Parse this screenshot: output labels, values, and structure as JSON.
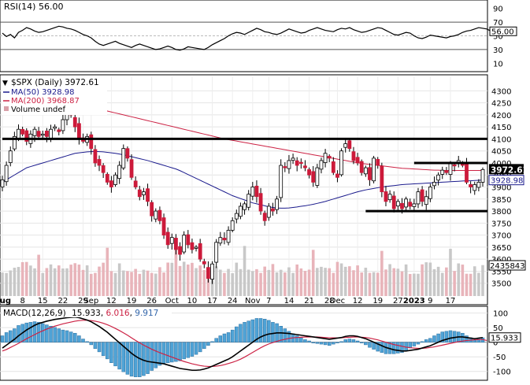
{
  "chart_data": [
    {
      "type": "line",
      "panel": "rsi",
      "legend": "RSI(14) 56.00",
      "ylim": [
        0,
        100
      ],
      "y_ticks": [
        90,
        70,
        50,
        30,
        10
      ],
      "reference_lines": [
        70,
        30
      ],
      "last_value": 56.0,
      "last_label": "56.00",
      "series": [
        {
          "name": "RSI(14)",
          "color": "#000000",
          "values": [
            54,
            49,
            52,
            47,
            55,
            58,
            62,
            60,
            57,
            55,
            56,
            58,
            60,
            62,
            64,
            63,
            61,
            60,
            58,
            55,
            52,
            50,
            47,
            42,
            38,
            36,
            38,
            40,
            42,
            39,
            37,
            35,
            33,
            36,
            38,
            36,
            34,
            32,
            30,
            31,
            33,
            35,
            33,
            30,
            29,
            31,
            34,
            33,
            32,
            31,
            30,
            33,
            37,
            40,
            43,
            46,
            50,
            53,
            55,
            54,
            52,
            55,
            58,
            61,
            59,
            56,
            55,
            53,
            52,
            54,
            57,
            60,
            58,
            56,
            54,
            55,
            58,
            60,
            62,
            60,
            58,
            57,
            56,
            59,
            61,
            60,
            62,
            59,
            57,
            55,
            56,
            58,
            60,
            62,
            61,
            58,
            55,
            52,
            51,
            53,
            55,
            54,
            50,
            47,
            46,
            48,
            51,
            50,
            49,
            48,
            47,
            49,
            50,
            52,
            55,
            57,
            58,
            60,
            62,
            61,
            60,
            57,
            53,
            54,
            56
          ]
        }
      ]
    },
    {
      "type": "candlestick",
      "panel": "price",
      "legend_title": "$SPX (Daily) 3972.61",
      "legend_items": [
        {
          "label": "MA(50) 3928.98",
          "color": "#1a1a8c"
        },
        {
          "label": "MA(200) 3968.87",
          "color": "#cc2244"
        },
        {
          "label": "Volume undef",
          "color": "#d9a0a8"
        }
      ],
      "ylim": [
        3450,
        4360
      ],
      "y_ticks": [
        4300,
        4250,
        4200,
        4150,
        4100,
        4050,
        4000,
        3950,
        3900,
        3850,
        3800,
        3750,
        3700,
        3650,
        3600,
        3550,
        3500
      ],
      "last_price": "3972.61",
      "ma50_label": "3928.98",
      "volume_label": "2435843",
      "x_labels": [
        "Aug",
        "8",
        "15",
        "22",
        "29",
        "Sep",
        "12",
        "19",
        "26",
        "Oct",
        "10",
        "17",
        "24",
        "Nov",
        "7",
        "14",
        "21",
        "28",
        "Dec",
        "12",
        "19",
        "27",
        "2023",
        "9",
        "17"
      ],
      "x_label_index": [
        0,
        5,
        10,
        15,
        20,
        22,
        27,
        32,
        37,
        42,
        47,
        52,
        57,
        62,
        66,
        71,
        76,
        81,
        83,
        88,
        93,
        98,
        102,
        106,
        111
      ],
      "bold_label_index": [
        0,
        22,
        42,
        62,
        83,
        102
      ],
      "horizontal_levels": [
        {
          "value": 4100,
          "from": 0,
          "to": 124
        },
        {
          "value": 4000,
          "from": 102,
          "to": 121
        },
        {
          "value": 3800,
          "from": 90,
          "to": 124
        }
      ],
      "close": [
        3930,
        3990,
        4050,
        4110,
        4140,
        4120,
        4090,
        4120,
        4140,
        4110,
        4120,
        4110,
        4140,
        4150,
        4130,
        4180,
        4210,
        4200,
        4150,
        4100,
        4090,
        4110,
        4060,
        4000,
        3990,
        3960,
        3920,
        3900,
        3950,
        3990,
        4060,
        4020,
        3940,
        3900,
        3860,
        3880,
        3840,
        3780,
        3800,
        3760,
        3700,
        3660,
        3690,
        3640,
        3620,
        3700,
        3660,
        3640,
        3650,
        3600,
        3580,
        3520,
        3580,
        3670,
        3690,
        3680,
        3720,
        3760,
        3790,
        3820,
        3830,
        3870,
        3900,
        3860,
        3800,
        3760,
        3820,
        3800,
        3850,
        3990,
        3980,
        4010,
        4020,
        3990,
        4000,
        3980,
        3950,
        3920,
        3980,
        4010,
        4040,
        4020,
        3960,
        3940,
        4050,
        4080,
        4060,
        4010,
        4000,
        3960,
        3980,
        3930,
        4020,
        3990,
        3880,
        3840,
        3870,
        3810,
        3840,
        3810,
        3850,
        3820,
        3830,
        3880,
        3840,
        3860,
        3900,
        3920,
        3950,
        3970,
        3960,
        4000,
        3990,
        4010,
        3990,
        3920,
        3900,
        3910,
        3920,
        3972.61
      ],
      "ma50": [
        3920,
        3930,
        3940,
        3950,
        3960,
        3970,
        3980,
        3985,
        3990,
        3995,
        4000,
        4005,
        4010,
        4015,
        4020,
        4025,
        4030,
        4035,
        4040,
        4042,
        4044,
        4046,
        4047,
        4048,
        4047,
        4046,
        4044,
        4042,
        4040,
        4037,
        4034,
        4030,
        4026,
        4022,
        4018,
        4014,
        4010,
        4005,
        4000,
        3995,
        3990,
        3985,
        3980,
        3975,
        3968,
        3960,
        3952,
        3944,
        3936,
        3928,
        3920,
        3912,
        3904,
        3896,
        3888,
        3880,
        3872,
        3864,
        3858,
        3852,
        3846,
        3840,
        3834,
        3830,
        3826,
        3822,
        3818,
        3815,
        3813,
        3812,
        3812,
        3813,
        3815,
        3817,
        3820,
        3822,
        3825,
        3828,
        3832,
        3836,
        3840,
        3845,
        3850,
        3855,
        3860,
        3865,
        3870,
        3875,
        3880,
        3884,
        3888,
        3891,
        3894,
        3897,
        3900,
        3902,
        3904,
        3906,
        3908,
        3910,
        3911,
        3912,
        3913,
        3914,
        3915,
        3916,
        3917,
        3918,
        3919,
        3920,
        3921,
        3922,
        3923,
        3924,
        3925,
        3926,
        3926,
        3927,
        3928,
        3928.98
      ],
      "ma200": [
        4330,
        4325,
        4320,
        4315,
        4310,
        4305,
        4300,
        4295,
        4290,
        4285,
        4280,
        4276,
        4272,
        4268,
        4264,
        4260,
        4256,
        4252,
        4248,
        4244,
        4240,
        4236,
        4232,
        4228,
        4224,
        4220,
        4216,
        4212,
        4208,
        4204,
        4200,
        4196,
        4192,
        4188,
        4184,
        4180,
        4176,
        4172,
        4168,
        4164,
        4160,
        4156,
        4152,
        4148,
        4144,
        4140,
        4136,
        4132,
        4128,
        4124,
        4120,
        4116,
        4112,
        4108,
        4104,
        4100,
        4097,
        4094,
        4091,
        4088,
        4085,
        4082,
        4079,
        4076,
        4073,
        4070,
        4067,
        4064,
        4061,
        4058,
        4055,
        4052,
        4049,
        4046,
        4043,
        4040,
        4037,
        4034,
        4031,
        4028,
        4025,
        4022,
        4019,
        4016,
        4013,
        4010,
        4007,
        4004,
        4001,
        3998,
        3996,
        3994,
        3992,
        3990,
        3988,
        3986,
        3984,
        3982,
        3980,
        3978,
        3977,
        3976,
        3975,
        3974,
        3973,
        3972,
        3971,
        3970,
        3970,
        3969,
        3969,
        3969,
        3969,
        3969,
        3969,
        3969,
        3969,
        3969,
        3969,
        3968.87
      ]
    },
    {
      "type": "line",
      "panel": "macd",
      "legend_prefix": "MACD(12,26,9)",
      "legend_values": [
        "15.933",
        "6.016",
        "9.917"
      ],
      "legend_colors": [
        "#000000",
        "#cc2244",
        "#3366aa"
      ],
      "ylim": [
        -125,
        115
      ],
      "y_ticks": [
        100,
        50,
        0,
        -50,
        -100
      ],
      "last_label": "15.933",
      "macd": [
        -20,
        -10,
        0,
        10,
        22,
        32,
        42,
        50,
        58,
        64,
        68,
        72,
        75,
        78,
        80,
        82,
        84,
        85,
        86,
        84,
        80,
        76,
        70,
        62,
        54,
        44,
        34,
        22,
        10,
        -2,
        -14,
        -26,
        -38,
        -48,
        -56,
        -62,
        -66,
        -68,
        -70,
        -72,
        -74,
        -78,
        -82,
        -86,
        -90,
        -92,
        -94,
        -96,
        -96,
        -95,
        -92,
        -88,
        -82,
        -76,
        -70,
        -64,
        -58,
        -50,
        -40,
        -30,
        -20,
        -10,
        0,
        10,
        18,
        24,
        28,
        30,
        32,
        32,
        31,
        30,
        28,
        26,
        24,
        22,
        20,
        18,
        16,
        14,
        12,
        10,
        12,
        14,
        16,
        20,
        22,
        22,
        20,
        16,
        12,
        6,
        0,
        -6,
        -12,
        -18,
        -22,
        -26,
        -28,
        -30,
        -30,
        -28,
        -26,
        -24,
        -20,
        -16,
        -12,
        -6,
        0,
        6,
        10,
        14,
        16,
        18,
        18,
        16,
        14,
        12,
        14,
        15.933
      ],
      "signal": [
        -30,
        -25,
        -18,
        -11,
        -4,
        4,
        12,
        19,
        26,
        33,
        39,
        45,
        50,
        55,
        59,
        63,
        66,
        69,
        72,
        74,
        75,
        75,
        74,
        72,
        69,
        65,
        60,
        54,
        47,
        40,
        32,
        24,
        15,
        6,
        -2,
        -10,
        -17,
        -24,
        -30,
        -36,
        -41,
        -46,
        -51,
        -56,
        -61,
        -66,
        -70,
        -74,
        -77,
        -80,
        -82,
        -83,
        -83,
        -82,
        -80,
        -77,
        -73,
        -69,
        -64,
        -58,
        -51,
        -43,
        -35,
        -27,
        -19,
        -12,
        -6,
        -1,
        3,
        7,
        10,
        13,
        15,
        16,
        17,
        18,
        18,
        18,
        18,
        17,
        16,
        15,
        15,
        15,
        15,
        16,
        17,
        18,
        18,
        17,
        16,
        14,
        11,
        8,
        4,
        0,
        -4,
        -8,
        -11,
        -14,
        -17,
        -19,
        -20,
        -21,
        -21,
        -20,
        -18,
        -16,
        -13,
        -10,
        -7,
        -4,
        -1,
        2,
        4,
        6,
        7,
        8,
        9,
        9,
        6.016
      ]
    }
  ]
}
